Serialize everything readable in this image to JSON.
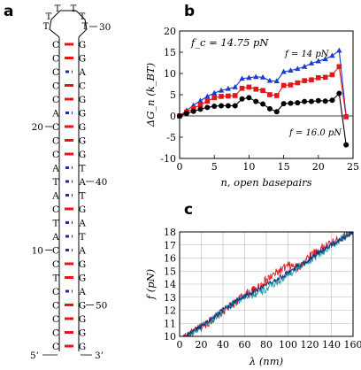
{
  "panels": {
    "a": {
      "letter": "a",
      "hairpin": {
        "loop_bases": [
          "T",
          "T",
          "T",
          "T",
          "T",
          "T"
        ],
        "stem_left": [
          "C",
          "C",
          "C",
          "C",
          "C",
          "A",
          "C",
          "C",
          "C",
          "A",
          "T",
          "A",
          "C",
          "T",
          "A",
          "C",
          "C",
          "T",
          "C",
          "C",
          "C",
          "C",
          "C"
        ],
        "stem_right": [
          "G",
          "G",
          "A",
          "C",
          "G",
          "G",
          "G",
          "G",
          "G",
          "T",
          "A",
          "T",
          "G",
          "A",
          "T",
          "A",
          "G",
          "G",
          "A",
          "G",
          "G",
          "G",
          "G"
        ],
        "pair_type": [
          "GC",
          "GC",
          "AT",
          "GC",
          "GC",
          "AT",
          "GC",
          "GC",
          "GC",
          "AT",
          "AT",
          "AT",
          "GC",
          "AT",
          "AT",
          "AT",
          "GC",
          "GC",
          "AT",
          "GC",
          "GC",
          "GC",
          "GC"
        ],
        "numbers": [
          {
            "text": "10",
            "side": "left",
            "row": 15
          },
          {
            "text": "20",
            "side": "left",
            "row": 6
          },
          {
            "text": "30",
            "side": "right",
            "row": -1
          },
          {
            "text": "40",
            "side": "right",
            "row": 10
          },
          {
            "text": "50",
            "side": "right",
            "row": 19
          }
        ],
        "end5": "5’",
        "end3": "3’",
        "colors": {
          "gc_pair": "#e8141c",
          "at_pair": "#1c2ea8",
          "backbone": "#000000"
        }
      }
    },
    "b": {
      "letter": "b",
      "annotation_fc": "f_c = 14.75 pN",
      "annotation_f14": "f = 14 pN",
      "annotation_f16": "f = 16.0 pN",
      "xlabel": "n, open basepairs",
      "ylabel": "ΔG_n (k_BT)",
      "x_ticks": [
        "0",
        "5",
        "10",
        "15",
        "20",
        "25"
      ],
      "y_ticks": [
        "-10",
        "-5",
        "0",
        "5",
        "10",
        "15",
        "20"
      ]
    },
    "c": {
      "letter": "c",
      "xlabel": "λ (nm)",
      "ylabel": "f (pN)",
      "x_ticks": [
        "0",
        "20",
        "40",
        "60",
        "80",
        "100",
        "120",
        "140",
        "160"
      ],
      "y_ticks": [
        "10",
        "11",
        "12",
        "13",
        "14",
        "15",
        "16",
        "17",
        "18"
      ]
    }
  },
  "chart_data": [
    {
      "type": "line",
      "panel": "b",
      "xlabel": "n, open basepairs",
      "ylabel": "ΔG_n (k_BT)",
      "xlim": [
        0,
        25
      ],
      "ylim": [
        -10,
        20
      ],
      "grid": false,
      "series": [
        {
          "name": "f = 14 pN",
          "color": "#1a3bd6",
          "marker": "triangle",
          "x": [
            0,
            1,
            2,
            3,
            4,
            5,
            6,
            7,
            8,
            9,
            10,
            11,
            12,
            13,
            14,
            15,
            16,
            17,
            18,
            19,
            20,
            21,
            22,
            23,
            24
          ],
          "y": [
            0,
            1.3,
            2.5,
            3.6,
            4.6,
            5.4,
            6.0,
            6.4,
            6.8,
            8.8,
            9.0,
            9.2,
            9.1,
            8.3,
            8.2,
            10.4,
            10.7,
            11.1,
            11.6,
            12.4,
            12.9,
            13.4,
            14.2,
            15.4,
            0
          ]
        },
        {
          "name": "f = 14.75 pN",
          "color": "#e01818",
          "marker": "square",
          "x": [
            0,
            1,
            2,
            3,
            4,
            5,
            6,
            7,
            8,
            9,
            10,
            11,
            12,
            13,
            14,
            15,
            16,
            17,
            18,
            19,
            20,
            21,
            22,
            23,
            24
          ],
          "y": [
            0,
            0.9,
            1.8,
            2.6,
            3.5,
            4.3,
            4.6,
            4.7,
            4.8,
            6.5,
            6.8,
            6.3,
            6.0,
            5.0,
            4.8,
            7.2,
            7.3,
            7.8,
            8.3,
            8.5,
            9.0,
            9.1,
            9.7,
            11.6,
            -0.2
          ]
        },
        {
          "name": "f = 16.0 pN",
          "color": "#000000",
          "marker": "circle",
          "x": [
            0,
            1,
            2,
            3,
            4,
            5,
            6,
            7,
            8,
            9,
            10,
            11,
            12,
            13,
            14,
            15,
            16,
            17,
            18,
            19,
            20,
            21,
            22,
            23,
            24
          ],
          "y": [
            0,
            0.6,
            1.1,
            1.6,
            2.0,
            2.3,
            2.4,
            2.4,
            2.4,
            4.0,
            4.3,
            3.4,
            2.8,
            1.7,
            1.0,
            2.9,
            3.0,
            3.1,
            3.4,
            3.4,
            3.6,
            3.5,
            3.7,
            5.3,
            -6.8
          ]
        }
      ]
    },
    {
      "type": "line",
      "panel": "c",
      "xlabel": "λ (nm)",
      "ylabel": "f (pN)",
      "xlim": [
        0,
        160
      ],
      "ylim": [
        10,
        18
      ],
      "grid": true,
      "series": [
        {
          "color": "#e01818",
          "x": [
            0,
            10,
            20,
            30,
            40,
            50,
            60,
            70,
            80,
            90,
            100,
            110,
            120,
            130,
            140,
            150,
            160
          ],
          "y": [
            9.6,
            10.2,
            10.7,
            11.3,
            11.9,
            12.5,
            13.2,
            13.6,
            14.3,
            14.9,
            15.4,
            15.3,
            16.2,
            16.7,
            17.1,
            17.6,
            18.2
          ]
        },
        {
          "color": "#18a0a0",
          "x": [
            0,
            10,
            20,
            30,
            40,
            50,
            60,
            70,
            80,
            90,
            100,
            110,
            120,
            130,
            140,
            150,
            160
          ],
          "y": [
            9.6,
            10.2,
            10.8,
            11.3,
            11.9,
            12.5,
            13.1,
            13.2,
            13.6,
            14.2,
            14.7,
            15.3,
            15.8,
            16.4,
            16.9,
            17.5,
            18.1
          ]
        },
        {
          "color": "#1a2a80",
          "x": [
            0,
            10,
            20,
            30,
            40,
            50,
            60,
            70,
            80,
            90,
            100,
            110,
            120,
            130,
            140,
            150,
            160
          ],
          "y": [
            9.7,
            10.3,
            10.8,
            11.4,
            12.0,
            12.6,
            13.1,
            13.5,
            14.0,
            14.4,
            14.9,
            15.4,
            15.9,
            16.5,
            17.0,
            17.5,
            18.0
          ]
        }
      ]
    }
  ]
}
